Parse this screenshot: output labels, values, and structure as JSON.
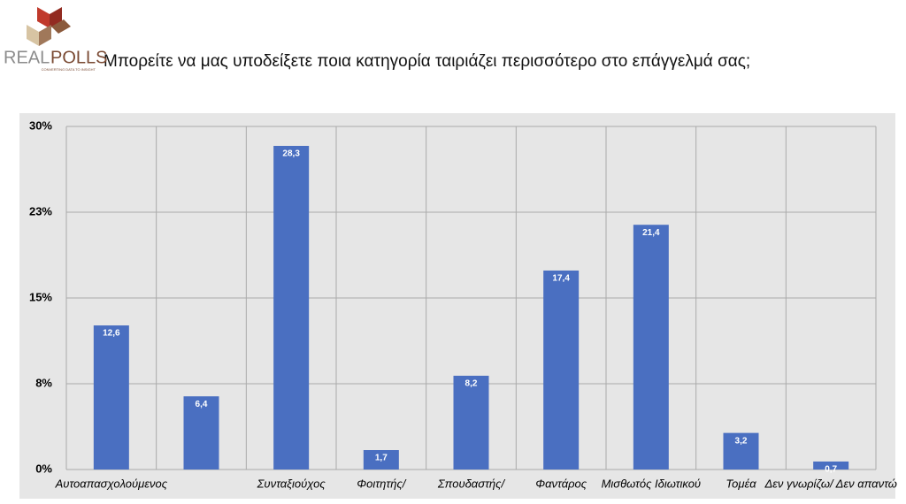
{
  "logo": {
    "text": [
      "REAL",
      "POLLS"
    ],
    "tagline": "CONVERTING DATA TO INSIGHT"
  },
  "chart_data": {
    "type": "bar",
    "title": "Μπορείτε να μας υποδείξετε ποια κατηγορία ταιριάζει περισσότερο στο επάγγελμά σας;",
    "categories": [
      "Αυτοαπασχολούμενος",
      null,
      "Συνταξιούχος",
      "Φοιτητής/",
      "Σπουδαστής/",
      "Φαντάρος",
      "Μισθωτός  Ιδιωτικού",
      "Τομέα",
      "Δεν γνωρίζω/  Δεν απαντώ"
    ],
    "values": [
      12.6,
      6.4,
      28.3,
      1.7,
      8.2,
      17.4,
      21.4,
      3.2,
      0.7
    ],
    "value_labels": [
      "12,6",
      "6,4",
      "28,3",
      "1,7",
      "8,2",
      "17,4",
      "21,4",
      "3,2",
      "0,7"
    ],
    "color": "#4a6fc1",
    "ylim": [
      0,
      30
    ],
    "yticks": [
      {
        "value": 0,
        "label": "0%"
      },
      {
        "value": 7.5,
        "label": "8%"
      },
      {
        "value": 15,
        "label": "15%"
      },
      {
        "value": 22.5,
        "label": "23%"
      },
      {
        "value": 30,
        "label": "30%"
      }
    ],
    "grid": true
  }
}
